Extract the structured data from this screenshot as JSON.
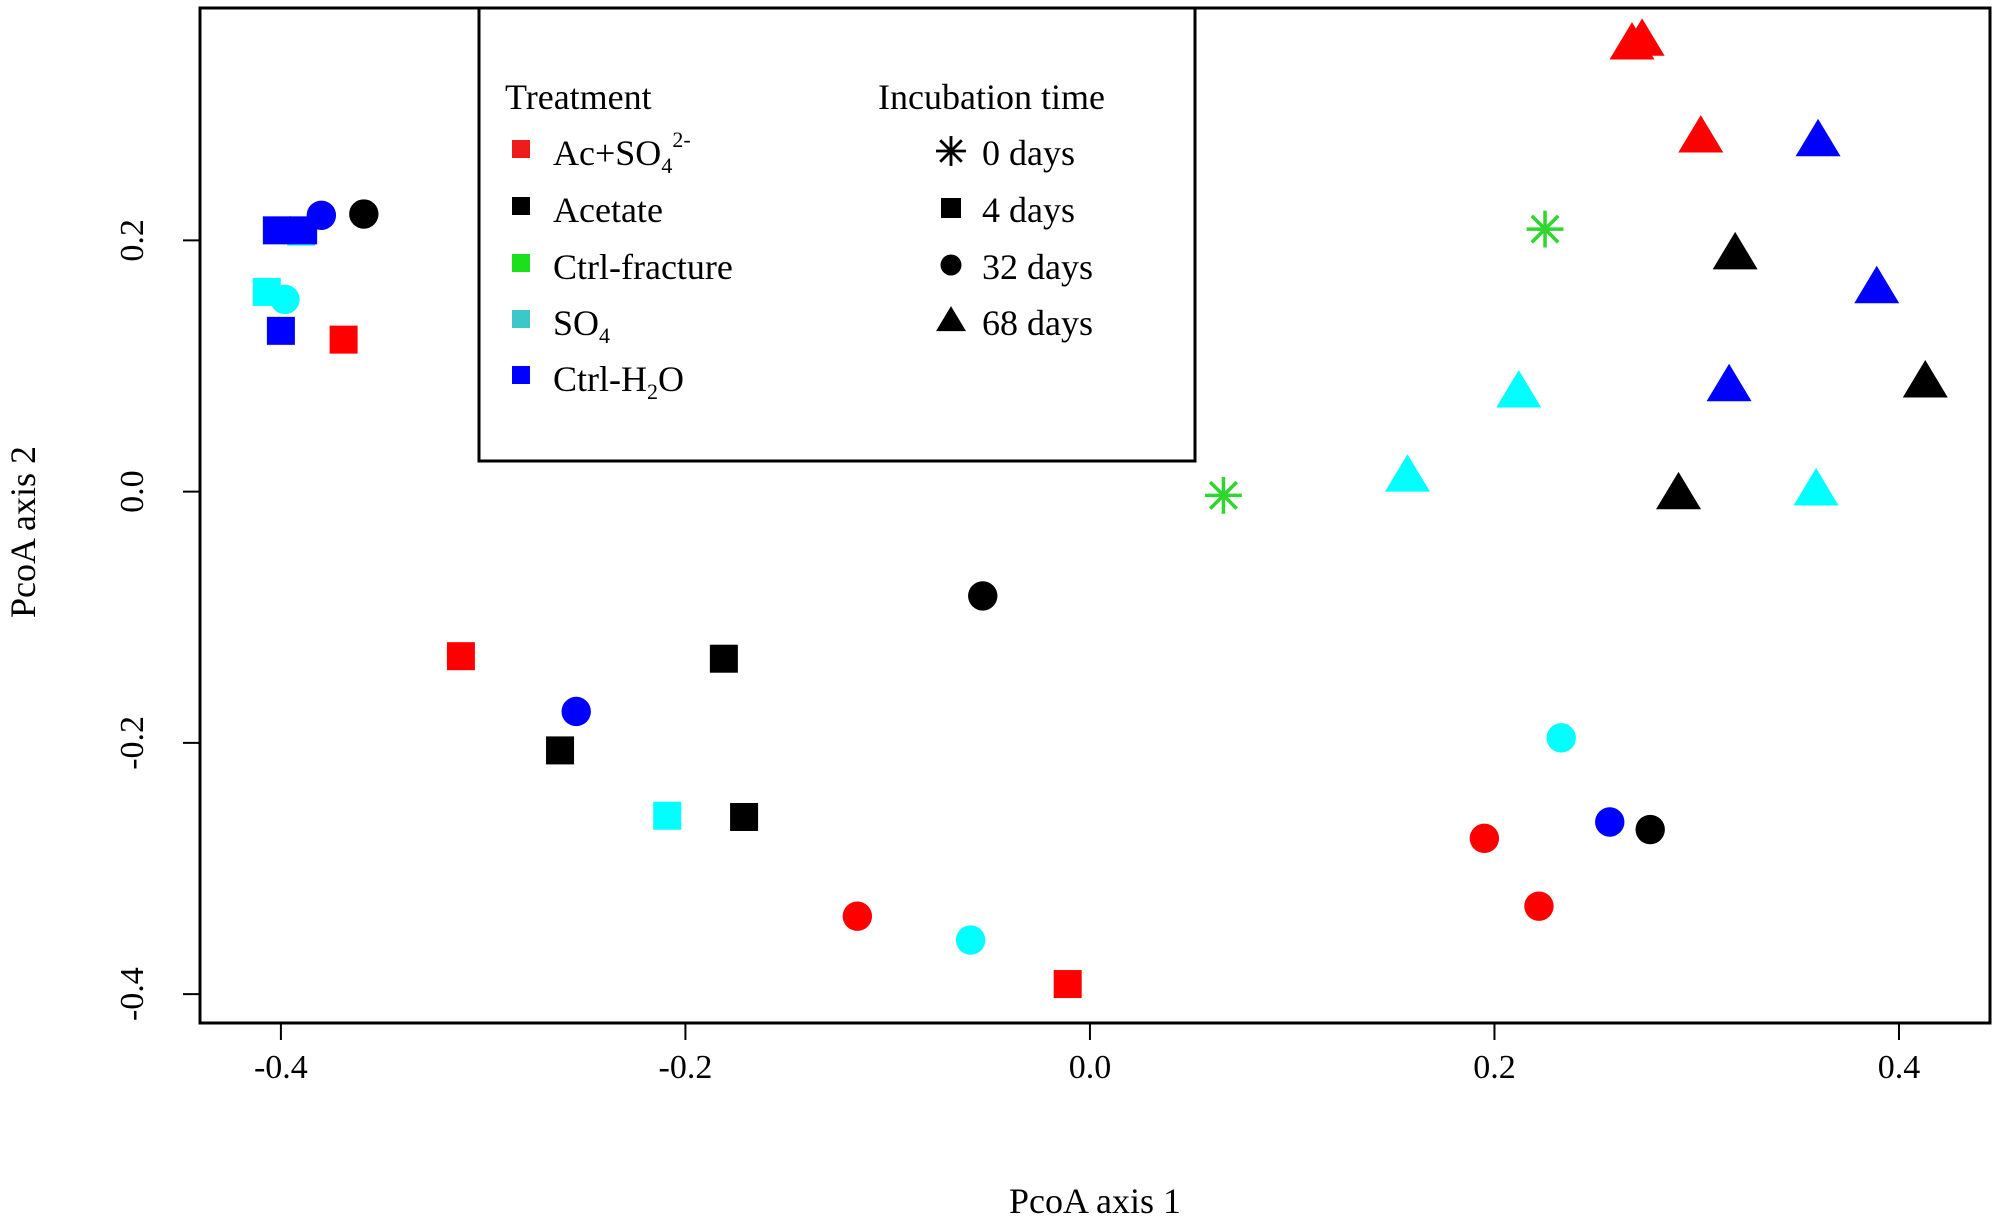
{
  "chart_data": {
    "type": "scatter",
    "xlabel": "PcoA axis 1",
    "ylabel": "PcoA axis 2",
    "xlim": [
      -0.44,
      0.445
    ],
    "ylim": [
      -0.423,
      0.385
    ],
    "x_ticks": [
      -0.4,
      -0.2,
      0.0,
      0.2,
      0.4
    ],
    "x_tick_labels": [
      "-0.4",
      "-0.2",
      "0.0",
      "0.2",
      "0.4"
    ],
    "y_ticks": [
      -0.4,
      -0.2,
      0.0,
      0.2
    ],
    "y_tick_labels": [
      "-0.4",
      "-0.2",
      "0.0",
      "0.2"
    ],
    "legend": {
      "position": "top-left",
      "treatment_title": "Treatment",
      "time_title": "Incubation time",
      "treatments": [
        {
          "key": "acso4",
          "label": "Ac+SO",
          "sub": "4",
          "sup": "2-",
          "color": "#ff0000",
          "swatch": "#ee1c1c"
        },
        {
          "key": "acetate",
          "label": "Acetate",
          "color": "#000000",
          "swatch": "#000000"
        },
        {
          "key": "ctrlfrac",
          "label": "Ctrl-fracture",
          "color": "#2ed62e",
          "swatch": "#1be01b"
        },
        {
          "key": "so4",
          "label": "SO",
          "sub": "4",
          "color": "#00ffff",
          "swatch": "#3cc8c8"
        },
        {
          "key": "ctrlh2o",
          "label": "Ctrl-H",
          "sub": "2",
          "after": "O",
          "color": "#0000ff",
          "swatch": "#0000ff"
        }
      ],
      "times": [
        {
          "shape": "star",
          "label": "0 days"
        },
        {
          "shape": "square",
          "label": "4 days"
        },
        {
          "shape": "circle",
          "label": "32 days"
        },
        {
          "shape": "triangle",
          "label": "68 days"
        }
      ]
    },
    "series": [
      {
        "treatment": "acso4",
        "points": [
          {
            "time": "4 days",
            "x": -0.369,
            "y": 0.121
          },
          {
            "time": "4 days",
            "x": -0.311,
            "y": -0.131
          },
          {
            "time": "4 days",
            "x": -0.011,
            "y": -0.392
          },
          {
            "time": "32 days",
            "x": -0.115,
            "y": -0.338
          },
          {
            "time": "32 days",
            "x": 0.195,
            "y": -0.276
          },
          {
            "time": "32 days",
            "x": 0.222,
            "y": -0.33
          },
          {
            "time": "68 days",
            "x": 0.268,
            "y": 0.356
          },
          {
            "time": "68 days",
            "x": 0.273,
            "y": 0.359
          },
          {
            "time": "68 days",
            "x": 0.302,
            "y": 0.282
          }
        ]
      },
      {
        "treatment": "acetate",
        "points": [
          {
            "time": "4 days",
            "x": -0.262,
            "y": -0.206
          },
          {
            "time": "4 days",
            "x": -0.181,
            "y": -0.133
          },
          {
            "time": "4 days",
            "x": -0.171,
            "y": -0.259
          },
          {
            "time": "32 days",
            "x": -0.359,
            "y": 0.221
          },
          {
            "time": "32 days",
            "x": -0.053,
            "y": -0.083
          },
          {
            "time": "32 days",
            "x": 0.277,
            "y": -0.269
          },
          {
            "time": "68 days",
            "x": 0.291,
            "y": -0.002
          },
          {
            "time": "68 days",
            "x": 0.319,
            "y": 0.189
          },
          {
            "time": "68 days",
            "x": 0.413,
            "y": 0.087
          }
        ]
      },
      {
        "treatment": "ctrlfrac",
        "points": [
          {
            "time": "0 days",
            "x": 0.066,
            "y": -0.003
          },
          {
            "time": "0 days",
            "x": 0.225,
            "y": 0.209
          }
        ]
      },
      {
        "treatment": "so4",
        "points": [
          {
            "time": "4 days",
            "x": -0.407,
            "y": 0.159
          },
          {
            "time": "4 days",
            "x": -0.209,
            "y": -0.258
          },
          {
            "time": "4 days",
            "x": -0.39,
            "y": 0.207
          },
          {
            "time": "32 days",
            "x": -0.398,
            "y": 0.153
          },
          {
            "time": "32 days",
            "x": -0.059,
            "y": -0.357
          },
          {
            "time": "32 days",
            "x": 0.233,
            "y": -0.196
          },
          {
            "time": "68 days",
            "x": 0.157,
            "y": 0.012
          },
          {
            "time": "68 days",
            "x": 0.212,
            "y": 0.079
          },
          {
            "time": "68 days",
            "x": 0.359,
            "y": 0.001
          }
        ]
      },
      {
        "treatment": "ctrlh2o",
        "points": [
          {
            "time": "4 days",
            "x": -0.4,
            "y": 0.128
          },
          {
            "time": "4 days",
            "x": -0.402,
            "y": 0.208
          },
          {
            "time": "4 days",
            "x": -0.389,
            "y": 0.208
          },
          {
            "time": "32 days",
            "x": -0.38,
            "y": 0.22
          },
          {
            "time": "32 days",
            "x": -0.254,
            "y": -0.175
          },
          {
            "time": "32 days",
            "x": 0.257,
            "y": -0.263
          },
          {
            "time": "68 days",
            "x": 0.36,
            "y": 0.279
          },
          {
            "time": "68 days",
            "x": 0.389,
            "y": 0.162
          },
          {
            "time": "68 days",
            "x": 0.316,
            "y": 0.084
          }
        ]
      }
    ]
  }
}
